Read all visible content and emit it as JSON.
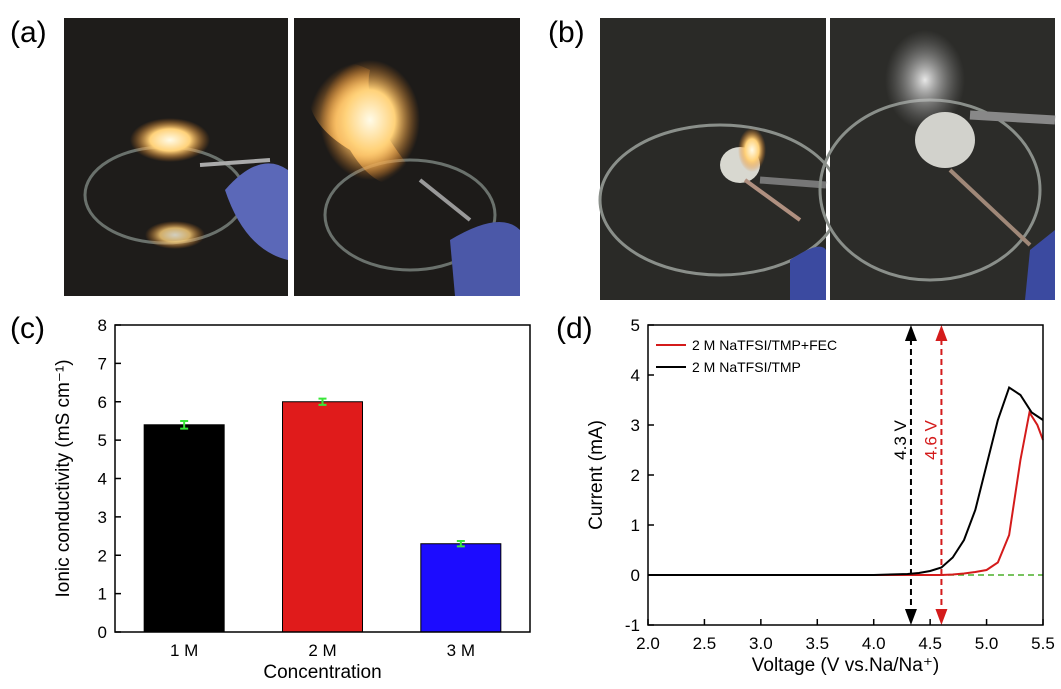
{
  "panels": [
    "(a)",
    "(b)",
    "(c)",
    "(d)"
  ],
  "chart_data": [
    {
      "type": "bar",
      "categories": [
        "1 M",
        "2 M",
        "3 M"
      ],
      "values": [
        5.4,
        6.0,
        2.3
      ],
      "errors": [
        0.1,
        0.08,
        0.07
      ],
      "colors": [
        "#000000",
        "#e01b1b",
        "#1c0cff"
      ],
      "error_color": "#39e639",
      "ylim": [
        0,
        8
      ],
      "yticks": [
        0,
        1,
        2,
        3,
        4,
        5,
        6,
        7,
        8
      ],
      "xlabel": "Concentration",
      "ylabel": "Ionic conductivity (mS cm⁻¹)"
    },
    {
      "type": "line",
      "xlabel": "Voltage (V vs.Na/Na⁺)",
      "ylabel": "Current (mA)",
      "xlim": [
        2.0,
        5.5
      ],
      "ylim": [
        -1,
        5
      ],
      "xticks": [
        {
          "value": 2,
          "label": "2.0"
        },
        {
          "value": 2.5,
          "label": "2.5"
        },
        {
          "value": 3,
          "label": "3.0"
        },
        {
          "value": 3.5,
          "label": "3.5"
        },
        {
          "value": 4,
          "label": "4.0"
        },
        {
          "value": 4.5,
          "label": "4.5"
        },
        {
          "value": 5,
          "label": "5.0"
        },
        {
          "value": 5.5,
          "label": "5.5"
        }
      ],
      "yticks": [
        -1,
        0,
        1,
        2,
        3,
        4,
        5
      ],
      "baseline_color": "#4caf2a",
      "legend": "upper left",
      "series": [
        {
          "name": "2 M NaTFSI/TMP+FEC",
          "color": "#d41b1b",
          "x": [
            2.0,
            2.5,
            3.0,
            3.5,
            4.0,
            4.5,
            4.6,
            4.7,
            4.8,
            4.9,
            5.0,
            5.1,
            5.2,
            5.3,
            5.38,
            5.45,
            5.5
          ],
          "values": [
            0,
            0,
            0,
            0,
            0,
            0,
            0,
            0.01,
            0.03,
            0.06,
            0.1,
            0.25,
            0.8,
            2.3,
            3.25,
            3.0,
            2.7
          ]
        },
        {
          "name": "2 M NaTFSI/TMP",
          "color": "#000000",
          "x": [
            2.0,
            2.5,
            3.0,
            3.5,
            4.0,
            4.3,
            4.4,
            4.5,
            4.6,
            4.7,
            4.8,
            4.9,
            5.0,
            5.1,
            5.2,
            5.3,
            5.4,
            5.5
          ],
          "values": [
            0,
            0,
            0,
            0,
            0,
            0.02,
            0.04,
            0.08,
            0.15,
            0.35,
            0.7,
            1.3,
            2.2,
            3.1,
            3.75,
            3.6,
            3.25,
            3.1
          ]
        }
      ],
      "annotations": [
        {
          "text": "4.3 V",
          "x": 4.33,
          "color": "#000000"
        },
        {
          "text": "4.6 V",
          "x": 4.6,
          "color": "#d41b1b"
        }
      ]
    }
  ]
}
